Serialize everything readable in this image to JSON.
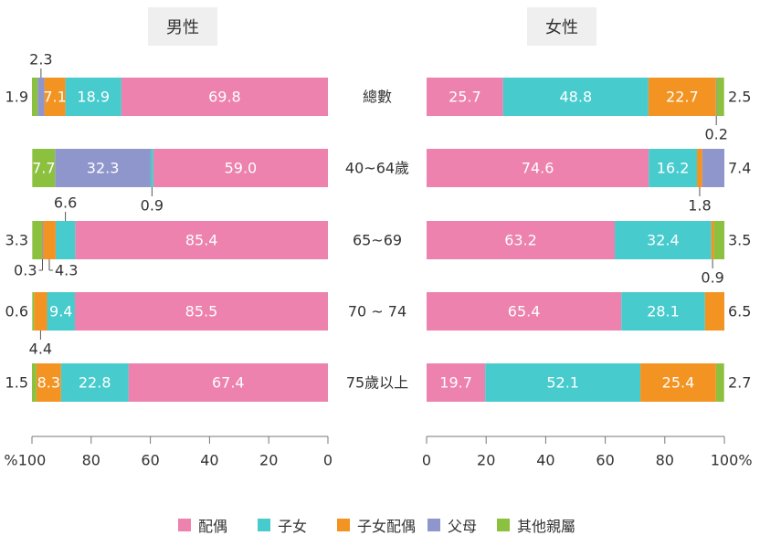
{
  "colors": {
    "spouse": "#ec82ad",
    "children": "#47cbcd",
    "children_spouse": "#f39322",
    "parents": "#8f96cb",
    "other": "#8cc03f",
    "axis": "#777777",
    "text": "#333333"
  },
  "legend": [
    {
      "key": "spouse",
      "label": "配偶"
    },
    {
      "key": "children",
      "label": "子女"
    },
    {
      "key": "children_spouse",
      "label": "子女配偶"
    },
    {
      "key": "parents",
      "label": "父母"
    },
    {
      "key": "other",
      "label": "其他親屬"
    }
  ],
  "chart_data": {
    "type": "bar",
    "orientation": "horizontal-stacked-butterfly",
    "categories": [
      "總數",
      "40~64歲",
      "65~69",
      "70 ~ 74",
      "75歲以上"
    ],
    "axis_unit": "%",
    "panels": [
      {
        "title": "男性",
        "direction": "reversed",
        "xlim": [
          100,
          0
        ],
        "ticks": [
          "100",
          "80",
          "60",
          "40",
          "20",
          "0"
        ],
        "series": [
          {
            "key": "spouse",
            "name": "配偶",
            "values": [
              69.8,
              59.0,
              85.4,
              85.5,
              67.4
            ]
          },
          {
            "key": "children",
            "name": "子女",
            "values": [
              18.9,
              0.9,
              6.6,
              9.4,
              22.8
            ]
          },
          {
            "key": "children_spouse",
            "name": "子女配偶",
            "values": [
              7.1,
              0,
              4.3,
              4.4,
              8.3
            ]
          },
          {
            "key": "parents",
            "name": "父母",
            "values": [
              2.3,
              32.3,
              0.3,
              0,
              0
            ]
          },
          {
            "key": "other",
            "name": "其他親屬",
            "values": [
              1.9,
              7.7,
              3.3,
              0.6,
              1.5
            ]
          }
        ],
        "labels": [
          [
            "69.8",
            "18.9",
            "7.1",
            "2.3",
            "1.9"
          ],
          [
            "59.0",
            "0.9",
            "",
            "32.3",
            "7.7"
          ],
          [
            "85.4",
            "6.6",
            "4.3",
            "0.3",
            "3.3"
          ],
          [
            "85.5",
            "9.4",
            "4.4",
            "",
            "0.6"
          ],
          [
            "67.4",
            "22.8",
            "8.3",
            "",
            "1.5"
          ]
        ]
      },
      {
        "title": "女性",
        "direction": "normal",
        "xlim": [
          0,
          100
        ],
        "ticks": [
          "0",
          "20",
          "40",
          "60",
          "80",
          "100"
        ],
        "series": [
          {
            "key": "spouse",
            "name": "配偶",
            "values": [
              25.7,
              74.6,
              63.2,
              65.4,
              19.7
            ]
          },
          {
            "key": "children",
            "name": "子女",
            "values": [
              48.8,
              16.2,
              32.4,
              28.1,
              52.1
            ]
          },
          {
            "key": "children_spouse",
            "name": "子女配偶",
            "values": [
              22.7,
              1.8,
              0.9,
              6.5,
              25.4
            ]
          },
          {
            "key": "parents",
            "name": "父母",
            "values": [
              0.2,
              7.4,
              0,
              0,
              0
            ]
          },
          {
            "key": "other",
            "name": "其他親屬",
            "values": [
              2.5,
              0,
              3.5,
              0,
              2.7
            ]
          }
        ],
        "labels": [
          [
            "25.7",
            "48.8",
            "22.7",
            "0.2",
            "2.5"
          ],
          [
            "74.6",
            "16.2",
            "1.8",
            "7.4",
            ""
          ],
          [
            "63.2",
            "32.4",
            "0.9",
            "",
            "3.5"
          ],
          [
            "65.4",
            "28.1",
            "6.5",
            "",
            ""
          ],
          [
            "19.7",
            "52.1",
            "25.4",
            "",
            "2.7"
          ]
        ]
      }
    ]
  }
}
